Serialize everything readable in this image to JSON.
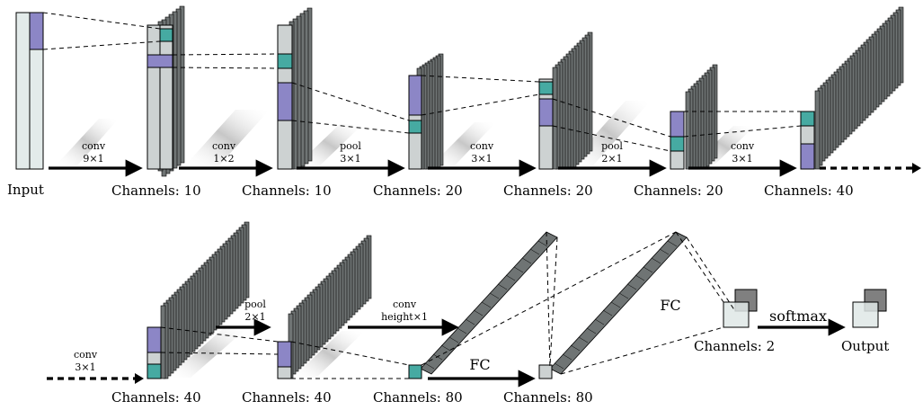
{
  "input": {
    "label": "Input"
  },
  "output": {
    "label": "Output"
  },
  "row1": {
    "ops": [
      {
        "name": "conv",
        "size": "9×1"
      },
      {
        "name": "conv",
        "size": "1×2"
      },
      {
        "name": "pool",
        "size": "3×1"
      },
      {
        "name": "conv",
        "size": "3×1"
      },
      {
        "name": "pool",
        "size": "2×1"
      },
      {
        "name": "conv",
        "size": "3×1"
      }
    ],
    "channels": [
      "Channels: 10",
      "Channels: 10",
      "Channels: 20",
      "Channels: 20",
      "Channels: 20",
      "Channels: 40"
    ]
  },
  "row2": {
    "ops": [
      {
        "name": "conv",
        "size": "3×1"
      },
      {
        "name": "pool",
        "size": "2×1"
      },
      {
        "name": "conv",
        "size": "height×1"
      }
    ],
    "fc_labels": [
      "FC",
      "FC"
    ],
    "softmax_label": "softmax",
    "channels": [
      "Channels: 40",
      "Channels: 40",
      "Channels: 80",
      "Channels: 80",
      "Channels: 2"
    ]
  },
  "colors": {
    "input_fill": "#e3ebea",
    "plate_front": "#cdd2d2",
    "plate_back": "#6f7474",
    "highlight_purple": "#8c86c6",
    "highlight_teal": "#46aaa2",
    "output_square": "#808080"
  }
}
